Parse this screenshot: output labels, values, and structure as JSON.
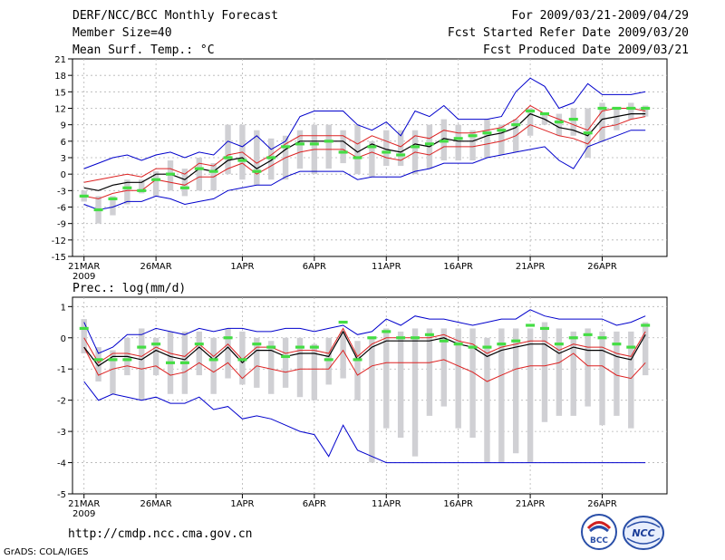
{
  "header": {
    "title": "DERF/NCC/BCC Monthly Forecast",
    "member_size": "Member Size=40",
    "variable": "Mean Surf. Temp.: °C",
    "period": "For 2009/03/21-2009/04/29",
    "started": "Fcst Started Refer Date 2009/03/20",
    "produced": "Fcst Produced Date 2009/03/21"
  },
  "footer": {
    "url": "http://cmdp.ncc.cma.gov.cn",
    "grads": "GrADS: COLA/IGES",
    "logo_left": "BCC",
    "logo_right": "NCC"
  },
  "colors": {
    "median": "#000000",
    "quartile": "#dd2222",
    "extreme": "#0000cc",
    "box": "#d0d0d4",
    "mean_tick": "#44dd44"
  },
  "chart_data": [
    {
      "type": "line",
      "title": "Mean Surf. Temp.: °C",
      "ylim": [
        -15,
        21
      ],
      "yticks": [
        "-15",
        "-12",
        "-9",
        "-6",
        "-3",
        "0",
        "3",
        "6",
        "9",
        "12",
        "15",
        "18",
        "21"
      ],
      "ytick_values": [
        -15,
        -12,
        -9,
        -6,
        -3,
        0,
        3,
        6,
        9,
        12,
        15,
        18,
        21
      ],
      "xtick_labels": [
        "21MAR",
        "26MAR",
        "1APR",
        "6APR",
        "11APR",
        "16APR",
        "21APR",
        "26APR"
      ],
      "xtick_days": [
        1,
        6,
        12,
        17,
        22,
        27,
        32,
        37
      ],
      "year_label": "2009",
      "days": 40,
      "series": [
        {
          "name": "max",
          "values": [
            1,
            2,
            3,
            3.5,
            2.5,
            3.5,
            4,
            3,
            4,
            3.5,
            6,
            5,
            7,
            4.5,
            6,
            10.5,
            11.5,
            11.5,
            11.5,
            9,
            8,
            9.5,
            7,
            11.5,
            10.5,
            12.5,
            10,
            10,
            10,
            10.5,
            15,
            17.5,
            16,
            12,
            13,
            16.5,
            14.5,
            14.5,
            14.5,
            15
          ]
        },
        {
          "name": "upper_quartile",
          "values": [
            -1.5,
            -1,
            -0.5,
            0,
            -0.5,
            1,
            1,
            0,
            2,
            1.5,
            3.5,
            4,
            2,
            3.5,
            5.5,
            7,
            7,
            7,
            7,
            5.5,
            7,
            6,
            5,
            7,
            6.5,
            8,
            7.5,
            7.5,
            8,
            8.5,
            10,
            12.5,
            11,
            10,
            9,
            8,
            11.5,
            12,
            12,
            11.5
          ]
        },
        {
          "name": "median",
          "values": [
            -2.5,
            -3,
            -2,
            -1.5,
            -1.5,
            0,
            0,
            -1,
            1,
            0.5,
            2.5,
            3,
            1,
            2.5,
            4.5,
            6,
            6,
            6,
            6,
            4,
            5.5,
            4.5,
            4,
            5.5,
            5,
            6.5,
            6,
            6,
            7,
            7.5,
            8.5,
            11,
            10,
            8.5,
            8,
            7,
            10,
            10.5,
            11,
            11
          ]
        },
        {
          "name": "lower_quartile",
          "values": [
            -4,
            -4.5,
            -3.5,
            -3,
            -3,
            -1,
            -1.5,
            -2,
            -0.5,
            -0.5,
            1,
            2,
            0,
            1.5,
            3,
            4,
            4.5,
            4.5,
            4.5,
            3,
            4,
            3,
            2.5,
            4,
            3.5,
            5,
            5,
            5,
            5.5,
            6,
            7,
            9,
            8,
            7,
            6.5,
            5.5,
            8.5,
            9,
            10,
            10.5
          ]
        },
        {
          "name": "min",
          "values": [
            -5.5,
            -6.5,
            -6,
            -5,
            -5,
            -4,
            -4.5,
            -5.5,
            -5,
            -4.5,
            -3,
            -2.5,
            -2,
            -2,
            -0.5,
            0.5,
            0.5,
            0.5,
            0.5,
            -1,
            -0.5,
            -0.5,
            -0.5,
            0.5,
            1,
            2,
            2,
            2,
            3,
            3.5,
            4,
            4.5,
            5,
            2.5,
            1,
            5,
            6,
            7,
            8,
            8
          ]
        },
        {
          "name": "box_top",
          "values": [
            -3,
            -4,
            -4,
            -1,
            -1,
            0.5,
            2.5,
            1,
            3,
            2,
            9,
            9,
            8,
            6.5,
            7,
            8,
            9,
            9,
            8,
            9,
            6,
            8,
            8,
            8,
            9,
            10,
            9,
            8,
            10,
            9,
            10,
            12,
            11,
            11,
            12,
            12,
            13,
            12,
            13,
            12.5
          ]
        },
        {
          "name": "box_bottom",
          "values": [
            -5,
            -9,
            -7.5,
            -5.5,
            -3.5,
            -4,
            -3,
            -4,
            -3,
            -3,
            0,
            -1,
            -2,
            -1,
            -1,
            1,
            0,
            1,
            2,
            0,
            -0.5,
            1.5,
            1.5,
            0,
            1,
            2.5,
            2.5,
            2.5,
            3,
            3.5,
            4,
            7,
            9,
            7,
            7,
            3,
            6,
            8,
            10,
            10.5
          ]
        },
        {
          "name": "mean",
          "values": [
            -4,
            -6.5,
            -4.5,
            -2.5,
            -3,
            -1,
            0,
            -2.5,
            1,
            0.5,
            3,
            2.5,
            0.5,
            3,
            5,
            5.5,
            5.5,
            6,
            4,
            3,
            5,
            4,
            3.5,
            5,
            5.5,
            6,
            6.5,
            7,
            7.5,
            8,
            9,
            11.5,
            11,
            9.5,
            10,
            7.5,
            12,
            12,
            12,
            12
          ]
        }
      ]
    },
    {
      "type": "line",
      "title": "Prec.: log(mm/d)",
      "ylim": [
        -5,
        1.3
      ],
      "yticks": [
        "-5",
        "-4",
        "-3",
        "-2",
        "-1",
        "0",
        "1"
      ],
      "ytick_values": [
        -5,
        -4,
        -3,
        -2,
        -1,
        0,
        1
      ],
      "xtick_labels": [
        "21MAR",
        "26MAR",
        "1APR",
        "6APR",
        "11APR",
        "16APR",
        "21APR",
        "26APR"
      ],
      "xtick_days": [
        1,
        6,
        12,
        17,
        22,
        27,
        32,
        37
      ],
      "year_label": "2009",
      "days": 40,
      "series": [
        {
          "name": "max",
          "values": [
            0.5,
            -0.5,
            -0.3,
            0.1,
            0.1,
            0.3,
            0.2,
            0.1,
            0.3,
            0.2,
            0.3,
            0.3,
            0.2,
            0.2,
            0.3,
            0.3,
            0.2,
            0.3,
            0.4,
            0.1,
            0.2,
            0.6,
            0.4,
            0.7,
            0.6,
            0.6,
            0.5,
            0.4,
            0.5,
            0.6,
            0.6,
            0.9,
            0.7,
            0.6,
            0.6,
            0.6,
            0.6,
            0.4,
            0.5,
            0.7
          ]
        },
        {
          "name": "upper_quartile",
          "values": [
            0,
            -0.8,
            -0.5,
            -0.5,
            -0.6,
            -0.3,
            -0.5,
            -0.6,
            -0.2,
            -0.6,
            -0.2,
            -0.7,
            -0.3,
            -0.3,
            -0.5,
            -0.4,
            -0.4,
            -0.5,
            0.3,
            -0.6,
            -0.2,
            0,
            0,
            0,
            0,
            0.1,
            -0.1,
            -0.2,
            -0.5,
            -0.3,
            -0.2,
            -0.1,
            -0.1,
            -0.4,
            -0.2,
            -0.3,
            -0.3,
            -0.5,
            -0.6,
            0.2
          ]
        },
        {
          "name": "median",
          "values": [
            -0.3,
            -0.9,
            -0.6,
            -0.6,
            -0.7,
            -0.4,
            -0.6,
            -0.7,
            -0.3,
            -0.7,
            -0.3,
            -0.8,
            -0.4,
            -0.4,
            -0.6,
            -0.5,
            -0.5,
            -0.6,
            0.2,
            -0.7,
            -0.3,
            -0.1,
            -0.1,
            -0.1,
            -0.1,
            0,
            -0.2,
            -0.3,
            -0.6,
            -0.4,
            -0.3,
            -0.2,
            -0.2,
            -0.5,
            -0.3,
            -0.4,
            -0.4,
            -0.6,
            -0.7,
            0.1
          ]
        },
        {
          "name": "lower_quartile",
          "values": [
            -0.3,
            -1.2,
            -1,
            -0.9,
            -1,
            -0.9,
            -1.2,
            -1.1,
            -0.8,
            -1.1,
            -0.8,
            -1.3,
            -0.9,
            -1,
            -1.1,
            -1,
            -1,
            -1,
            -0.4,
            -1.2,
            -0.9,
            -0.8,
            -0.8,
            -0.8,
            -0.8,
            -0.7,
            -0.9,
            -1.1,
            -1.4,
            -1.2,
            -1,
            -0.9,
            -0.9,
            -0.8,
            -0.5,
            -0.9,
            -0.9,
            -1.2,
            -1.3,
            -0.8
          ]
        },
        {
          "name": "min",
          "values": [
            -1.4,
            -2,
            -1.8,
            -1.9,
            -2,
            -1.9,
            -2.1,
            -2.1,
            -1.9,
            -2.3,
            -2.2,
            -2.6,
            -2.5,
            -2.6,
            -2.8,
            -3,
            -3.1,
            -3.8,
            -2.8,
            -3.6,
            -3.8,
            -4,
            -4,
            -4,
            -4,
            -4,
            -4,
            -4,
            -4,
            -4,
            -4,
            -4,
            -4,
            -4,
            -4,
            -4,
            -4,
            -4,
            -4,
            -4
          ]
        },
        {
          "name": "box_top",
          "values": [
            0.6,
            -0.3,
            -0.4,
            0,
            0.3,
            0,
            0.2,
            0.2,
            0.2,
            0,
            0.3,
            0.2,
            0,
            -0.1,
            0,
            0,
            -0.2,
            0,
            0.2,
            -0.1,
            0,
            0.3,
            0.2,
            0.3,
            0.3,
            0.3,
            0.3,
            0.3,
            0,
            0.3,
            0.3,
            0.3,
            0.5,
            0.3,
            0.2,
            0.3,
            0.2,
            0.2,
            0.2,
            0.5
          ]
        },
        {
          "name": "box_bottom",
          "values": [
            -0.5,
            -1.4,
            -1.8,
            -1.2,
            -2,
            -1.2,
            -1.8,
            -1.8,
            -1.2,
            -1.8,
            -1.3,
            -1.5,
            -1.6,
            -1.8,
            -1.6,
            -1.9,
            -2,
            -1.5,
            -1.3,
            -2,
            -4,
            -2.9,
            -3.2,
            -3.8,
            -2.5,
            -2.2,
            -2.9,
            -3.2,
            -4,
            -4,
            -3.7,
            -4,
            -2.7,
            -2.5,
            -2.5,
            -2.2,
            -2.8,
            -2.5,
            -2.9,
            -1.2
          ]
        },
        {
          "name": "mean",
          "values": [
            0.3,
            -0.7,
            -0.7,
            -0.7,
            -0.3,
            -0.2,
            -0.8,
            -0.8,
            -0.2,
            -0.7,
            0,
            -0.7,
            -0.2,
            -0.3,
            -0.6,
            -0.3,
            -0.3,
            -0.7,
            0.5,
            -0.7,
            0,
            0.2,
            0,
            0,
            0.1,
            -0.1,
            -0.2,
            -0.3,
            -0.3,
            -0.2,
            -0.1,
            0.4,
            0.3,
            -0.2,
            0,
            0.1,
            0,
            -0.2,
            -0.3,
            0.4
          ]
        }
      ]
    }
  ]
}
